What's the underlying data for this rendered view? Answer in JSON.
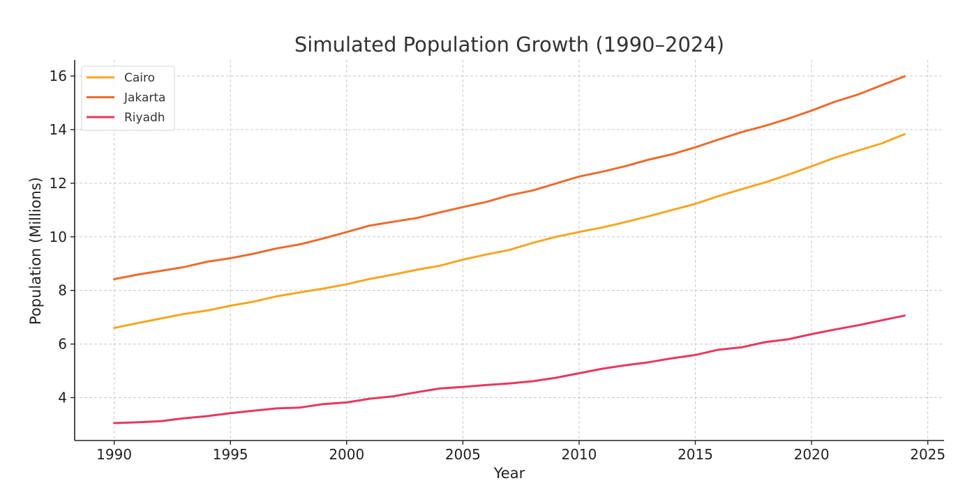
{
  "chart_data": {
    "type": "line",
    "title": "Simulated Population Growth (1990–2024)",
    "xlabel": "Year",
    "ylabel": "Population (Millions)",
    "xlim": [
      1988.3,
      2025.7
    ],
    "ylim": [
      2.4,
      16.6
    ],
    "x_ticks": [
      1990,
      1995,
      2000,
      2005,
      2010,
      2015,
      2020,
      2025
    ],
    "y_ticks": [
      4,
      6,
      8,
      10,
      12,
      14,
      16
    ],
    "grid": true,
    "legend_position": "top-left",
    "x": [
      1990,
      1991,
      1992,
      1993,
      1994,
      1995,
      1996,
      1997,
      1998,
      1999,
      2000,
      2001,
      2002,
      2003,
      2004,
      2005,
      2006,
      2007,
      2008,
      2009,
      2010,
      2011,
      2012,
      2013,
      2014,
      2015,
      2016,
      2017,
      2018,
      2019,
      2020,
      2021,
      2022,
      2023,
      2024
    ],
    "series": [
      {
        "name": "Cairo",
        "color": "#f5a623",
        "values": [
          6.6,
          6.78,
          6.95,
          7.12,
          7.25,
          7.43,
          7.58,
          7.78,
          7.93,
          8.07,
          8.23,
          8.43,
          8.59,
          8.77,
          8.92,
          9.15,
          9.34,
          9.51,
          9.77,
          10.0,
          10.18,
          10.35,
          10.55,
          10.77,
          11.0,
          11.23,
          11.52,
          11.78,
          12.03,
          12.32,
          12.63,
          12.95,
          13.22,
          13.48,
          13.83
        ]
      },
      {
        "name": "Jakarta",
        "color": "#ec6b2d",
        "values": [
          8.42,
          8.59,
          8.73,
          8.87,
          9.07,
          9.2,
          9.37,
          9.57,
          9.72,
          9.94,
          10.18,
          10.42,
          10.56,
          10.7,
          10.91,
          11.11,
          11.3,
          11.55,
          11.73,
          11.99,
          12.25,
          12.43,
          12.64,
          12.88,
          13.08,
          13.34,
          13.63,
          13.91,
          14.14,
          14.41,
          14.71,
          15.04,
          15.31,
          15.65,
          15.99
        ]
      },
      {
        "name": "Riyadh",
        "color": "#e8375e",
        "values": [
          3.05,
          3.08,
          3.12,
          3.23,
          3.31,
          3.42,
          3.51,
          3.6,
          3.63,
          3.76,
          3.82,
          3.96,
          4.05,
          4.2,
          4.34,
          4.4,
          4.47,
          4.53,
          4.61,
          4.74,
          4.91,
          5.08,
          5.21,
          5.32,
          5.47,
          5.59,
          5.79,
          5.88,
          6.07,
          6.18,
          6.37,
          6.54,
          6.7,
          6.88,
          7.06
        ]
      }
    ]
  }
}
